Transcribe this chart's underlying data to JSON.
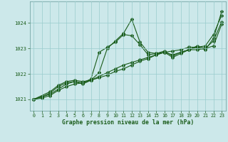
{
  "xlabel": "Graphe pression niveau de la mer (hPa)",
  "background_color": "#cce8ea",
  "grid_color": "#99cccc",
  "line_color": "#1a5c1a",
  "text_color": "#1a5c1a",
  "spine_color": "#669999",
  "xlim": [
    -0.5,
    23.5
  ],
  "ylim": [
    1020.55,
    1024.85
  ],
  "yticks": [
    1021,
    1022,
    1023,
    1024
  ],
  "xticks": [
    0,
    1,
    2,
    3,
    4,
    5,
    6,
    7,
    8,
    9,
    10,
    11,
    12,
    13,
    14,
    15,
    16,
    17,
    18,
    19,
    20,
    21,
    22,
    23
  ],
  "line1_x": [
    0,
    1,
    2,
    3,
    4,
    5,
    6,
    7,
    8,
    9,
    10,
    11,
    12,
    13,
    14,
    15,
    16,
    17,
    18,
    19,
    20,
    21,
    22,
    23
  ],
  "line1_y": [
    1021.0,
    1021.1,
    1021.2,
    1021.4,
    1021.6,
    1021.7,
    1021.65,
    1021.8,
    1022.85,
    1023.05,
    1023.25,
    1023.55,
    1023.5,
    1023.15,
    1022.75,
    1022.8,
    1022.85,
    1022.75,
    1022.85,
    1022.95,
    1023.05,
    1022.95,
    1023.4,
    1024.45
  ],
  "line2_x": [
    0,
    1,
    2,
    3,
    4,
    5,
    6,
    7,
    8,
    9,
    10,
    11,
    12,
    13,
    14,
    15,
    16,
    17,
    18,
    19,
    20,
    21,
    22,
    23
  ],
  "line2_y": [
    1021.0,
    1021.05,
    1021.15,
    1021.35,
    1021.5,
    1021.6,
    1021.65,
    1021.75,
    1021.85,
    1021.95,
    1022.1,
    1022.2,
    1022.35,
    1022.5,
    1022.6,
    1022.75,
    1022.85,
    1022.9,
    1022.95,
    1023.05,
    1023.05,
    1023.1,
    1023.55,
    1024.3
  ],
  "line3_x": [
    0,
    1,
    2,
    3,
    4,
    5,
    6,
    7,
    8,
    9,
    10,
    11,
    12,
    13,
    14,
    15,
    16,
    17,
    18,
    19,
    20,
    21,
    22,
    23
  ],
  "line3_y": [
    1021.0,
    1021.1,
    1021.25,
    1021.5,
    1021.65,
    1021.7,
    1021.6,
    1021.75,
    1021.9,
    1022.05,
    1022.2,
    1022.35,
    1022.45,
    1022.55,
    1022.65,
    1022.75,
    1022.85,
    1022.65,
    1022.8,
    1022.95,
    1022.95,
    1023.0,
    1023.1,
    1023.95
  ],
  "line4_x": [
    0,
    2,
    3,
    4,
    5,
    6,
    7,
    8,
    9,
    10,
    11,
    12,
    13,
    14,
    15,
    16,
    17,
    18,
    19,
    20,
    21,
    22,
    23
  ],
  "line4_y": [
    1021.0,
    1021.3,
    1021.55,
    1021.7,
    1021.75,
    1021.7,
    1021.75,
    1022.05,
    1023.0,
    1023.3,
    1023.6,
    1024.15,
    1023.25,
    1022.85,
    1022.8,
    1022.9,
    1022.7,
    1022.85,
    1022.95,
    1023.1,
    1023.0,
    1023.3,
    1024.05
  ]
}
